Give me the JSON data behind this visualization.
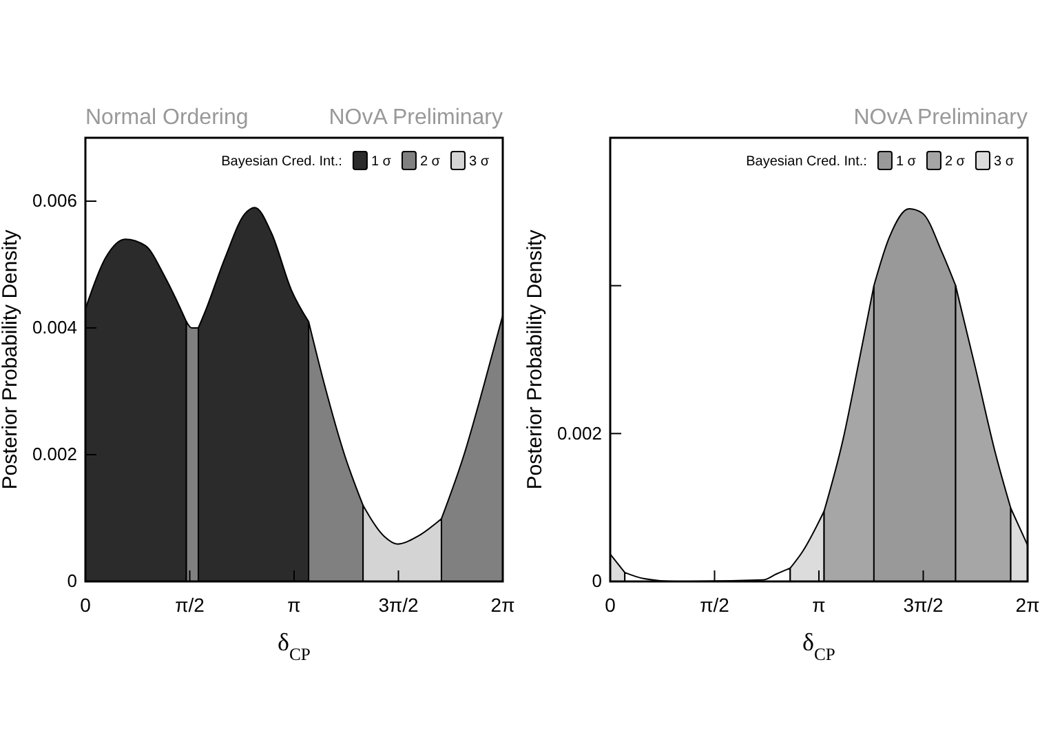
{
  "chart_data": [
    {
      "type": "area",
      "title": "Normal Ordering",
      "annotations": [
        "NOvA Preliminary"
      ],
      "xlabel": "δ$_{CP}$",
      "ylabel": "Posterior Probability Density",
      "legend_title": "Bayesian Cred. Int.:",
      "legend": "top right",
      "xlim": [
        0,
        6.2832
      ],
      "xticks": [
        0,
        {
          "value": 1.5708,
          "label": "π/2"
        },
        {
          "value": 3.1416,
          "label": "π"
        },
        {
          "value": 4.7124,
          "label": "3π/2"
        },
        {
          "value": 6.2832,
          "label": "2π"
        }
      ],
      "ylim": [
        0,
        0.007
      ],
      "yticks": [
        0,
        0.002,
        0.004,
        0.006
      ],
      "series": [
        {
          "name": "1 σ",
          "color": "#2b2b2b",
          "x": [
            0,
            0.3,
            0.6,
            0.9,
            1.2,
            1.52
          ],
          "values": [
            0.0043,
            0.0051,
            0.0054,
            0.0053,
            0.0048,
            0.0041
          ]
        },
        {
          "color": "#2b2b2b",
          "x": [
            1.7,
            1.8,
            2.1,
            2.4,
            2.55,
            2.8,
            3.1,
            3.36
          ],
          "values": [
            0.004,
            0.00425,
            0.0051,
            0.0058,
            0.0059,
            0.0055,
            0.0046,
            0.0041
          ]
        },
        {
          "name": "2 σ",
          "color": "#808080",
          "x": [
            1.52,
            1.6,
            1.7
          ],
          "values": [
            0.0041,
            0.004,
            0.004
          ]
        },
        {
          "color": "#808080",
          "x": [
            3.36,
            3.6,
            3.9,
            4.18
          ],
          "values": [
            0.0041,
            0.0031,
            0.002,
            0.0012
          ]
        },
        {
          "name": "3 σ",
          "color": "#d4d4d4",
          "x": [
            4.18,
            4.5,
            4.7,
            5.0,
            5.36
          ],
          "values": [
            0.0012,
            0.00071,
            0.00059,
            0.00071,
            0.00099
          ]
        },
        {
          "color": "#808080",
          "x": [
            5.36,
            5.7,
            6.0,
            6.2832
          ],
          "values": [
            0.00099,
            0.002,
            0.0031,
            0.0042
          ]
        }
      ]
    },
    {
      "type": "area",
      "annotations": [
        "NOvA Preliminary"
      ],
      "xlabel": "δ$_{CP}$",
      "ylabel": "Posterior Probability Density",
      "legend_title": "Bayesian Cred. Int.:",
      "legend": "top right",
      "xlim": [
        0,
        6.2832
      ],
      "xticks": [
        0,
        {
          "value": 1.5708,
          "label": "π/2"
        },
        {
          "value": 3.1416,
          "label": "π"
        },
        {
          "value": 4.7124,
          "label": "3π/2"
        },
        {
          "value": 6.2832,
          "label": "2π"
        }
      ],
      "ylim": [
        0,
        0.006
      ],
      "yticks": [
        0,
        0.002,
        {
          "value": 0.004,
          "label": null
        },
        {
          "value": 0.006,
          "label": null
        }
      ],
      "series": [
        {
          "color": "#dcdcdc",
          "x": [
            0,
            0.22
          ],
          "values": [
            0.00037,
            0.00012
          ]
        },
        {
          "color": "#ffffff",
          "x": [
            0.22,
            0.5,
            1.0,
            2.3,
            2.5,
            2.71
          ],
          "values": [
            0.00012,
            4e-05,
            0,
            2e-05,
            0.0001,
            0.00018
          ]
        },
        {
          "color": "#dcdcdc",
          "x": [
            2.71,
            2.9,
            3.22
          ],
          "values": [
            0.00018,
            0.00041,
            0.00095
          ]
        },
        {
          "color": "#a6a6a6",
          "x": [
            3.22,
            3.5,
            3.75,
            3.97
          ],
          "values": [
            0.00095,
            0.0019,
            0.003,
            0.004
          ]
        },
        {
          "name": "1 σ",
          "color": "#999999",
          "x": [
            3.97,
            4.2,
            4.5,
            4.7,
            5.0,
            5.2
          ],
          "values": [
            0.004,
            0.00465,
            0.00504,
            0.00498,
            0.00444,
            0.004
          ]
        },
        {
          "name": "2 σ",
          "color": "#a6a6a6",
          "x": [
            5.2,
            5.5,
            5.8,
            6.03
          ],
          "values": [
            0.004,
            0.00288,
            0.00173,
            0.00099
          ]
        },
        {
          "name": "3 σ",
          "color": "#dcdcdc",
          "x": [
            6.03,
            6.2832
          ],
          "values": [
            0.00099,
            0.00049
          ]
        }
      ]
    }
  ]
}
